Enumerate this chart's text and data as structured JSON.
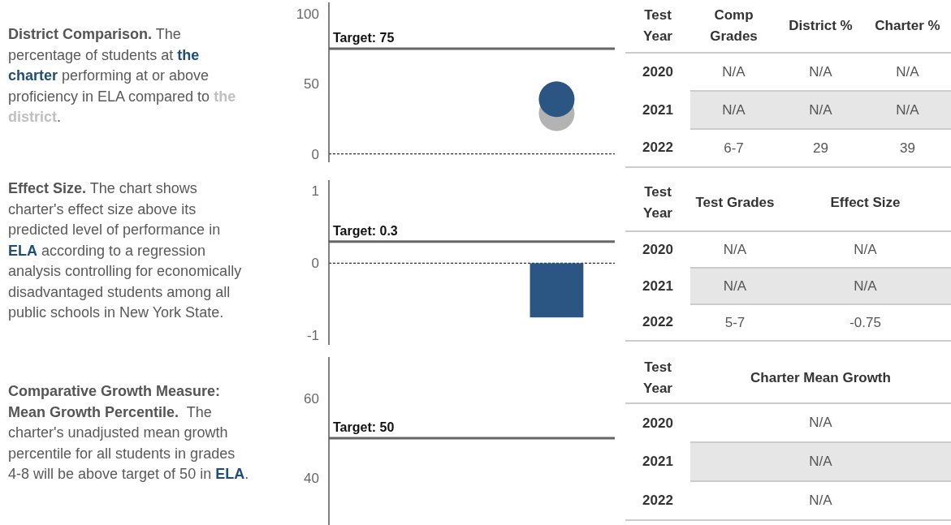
{
  "chart_data": [
    {
      "type": "other",
      "title": "District Comparison.",
      "categories": [
        " The percentage of students at ",
        "the charter",
        " performing at or above proficiency in ELA compared to ",
        "the district",
        "."
      ],
      "colors": [
        "#595959",
        "#1f4e79",
        "#595959",
        "#bfbfbf",
        "#595959"
      ]
    },
    {
      "type": "scatter",
      "categories": [
        null,
        null,
        null
      ],
      "marker": "circle",
      "tick_labels": "y",
      "ylim": [
        -6,
        108
      ],
      "yticks": [
        0,
        50,
        100
      ],
      "series": [
        {
          "color": "#b3b3b3",
          "values": [
            null,
            null,
            29
          ]
        },
        {
          "color": "#2b5582",
          "values": [
            null,
            null,
            39
          ]
        }
      ],
      "ref_lines": [
        {
          "axis": "y",
          "value": 75,
          "label": "Target: 75",
          "color": "#666666"
        },
        {
          "axis": "y",
          "value": 0,
          "line_style": "dashed",
          "color": "#333333"
        }
      ]
    },
    {
      "type": "other",
      "categories": [
        "Test Year",
        "Comp Grades",
        "District %",
        "Charter %"
      ],
      "y_categories": [
        "2020",
        "2021",
        "2022"
      ],
      "cell_labels": [
        [
          "N/A",
          "N/A",
          "N/A"
        ],
        [
          "N/A",
          "N/A",
          "N/A"
        ],
        [
          "6-7",
          "29",
          "39"
        ]
      ]
    },
    {
      "type": "other",
      "title": "Effect Size.",
      "categories": [
        " The chart shows charter's effect size above its predicted level of performance in ",
        "ELA",
        " according to a regression analysis controlling for economically disadvantaged students among all public schools in New York State."
      ],
      "colors": [
        "#595959",
        "#1f4e79",
        "#595959"
      ]
    },
    {
      "type": "bar",
      "categories": [
        null,
        null,
        null
      ],
      "values": [
        null,
        null,
        -0.75
      ],
      "color": "#2b5582",
      "tick_labels": "y",
      "ylim": [
        -1.13,
        1.15
      ],
      "yticks": [
        -1,
        0,
        1
      ],
      "ref_lines": [
        {
          "axis": "y",
          "value": 0.3,
          "label": "Target: 0.3",
          "color": "#666666"
        },
        {
          "axis": "y",
          "value": 0,
          "line_style": "dashed",
          "color": "#333333"
        }
      ]
    },
    {
      "type": "other",
      "categories": [
        "Test Year",
        "Test Grades",
        "Effect Size"
      ],
      "y_categories": [
        "2020",
        "2021",
        "2022"
      ],
      "cell_labels": [
        [
          "N/A",
          "N/A"
        ],
        [
          "N/A",
          "N/A"
        ],
        [
          "5-7",
          "-0.75"
        ]
      ]
    },
    {
      "type": "other",
      "title": "Comparative Growth Measure: Mean Growth Percentile.",
      "categories": [
        "  The charter's unadjusted mean growth percentile for all students in grades 4-8 will be above target of 50 in ",
        "ELA",
        "."
      ],
      "colors": [
        "#595959",
        "#1f4e79",
        "#595959"
      ]
    },
    {
      "type": "line",
      "categories": [
        null,
        null,
        null
      ],
      "values": [
        null,
        null,
        null
      ],
      "tick_labels": "y",
      "ylim": [
        28.2,
        70.4
      ],
      "yticks": [
        40,
        60
      ],
      "ref_lines": [
        {
          "axis": "y",
          "value": 50,
          "label": "Target: 50",
          "color": "#666666"
        }
      ]
    },
    {
      "type": "other",
      "categories": [
        "Test Year",
        "Charter Mean Growth"
      ],
      "y_categories": [
        "2020",
        "2021",
        "2022"
      ],
      "cell_labels": [
        [
          "N/A"
        ],
        [
          "N/A"
        ],
        [
          "N/A"
        ]
      ]
    }
  ]
}
